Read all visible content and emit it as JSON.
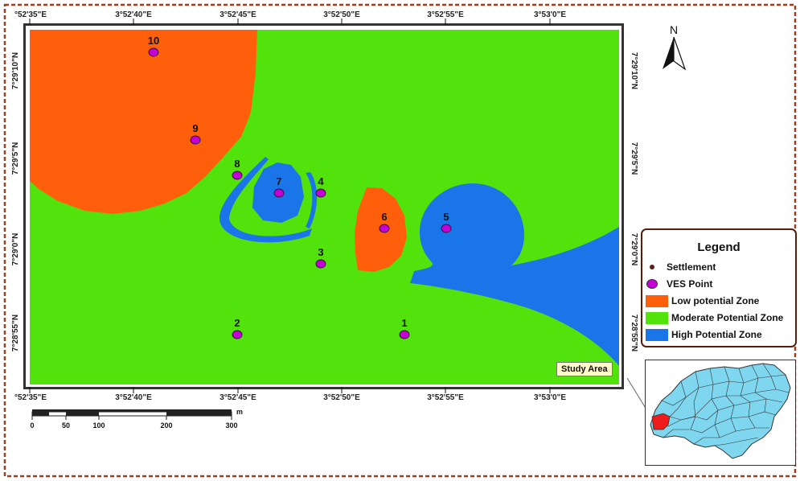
{
  "map": {
    "top_lon_labels": [
      "°52'35\"E",
      "3°52'40\"E",
      "3°52'45\"E",
      "3°52'50\"E",
      "3°52'55\"E",
      "3°53'0\"E"
    ],
    "bottom_lon_labels": [
      "°52'35\"E",
      "3°52'40\"E",
      "3°52'45\"E",
      "3°52'50\"E",
      "3°52'55\"E",
      "3°53'0\"E"
    ],
    "left_lat_labels": [
      "7°29'10\"N",
      "7°29'5\"N",
      "7°29'0\"N",
      "7°28'55\"N"
    ],
    "right_lat_labels": [
      "7°29'10\"N",
      "7°29'5\"N",
      "7°29'0\"N",
      "7°28'55\"N"
    ],
    "north_label": "N",
    "ves_points": [
      "1",
      "2",
      "3",
      "4",
      "5",
      "6",
      "7",
      "8",
      "9",
      "10"
    ]
  },
  "scale_bar": {
    "ticks": [
      "0",
      "50",
      "100",
      "200",
      "300"
    ],
    "unit": "m"
  },
  "legend": {
    "title": "Legend",
    "items": [
      {
        "label": "Settlement",
        "color": "#5a1f14"
      },
      {
        "label": "VES Point",
        "color": "#c400d6"
      },
      {
        "label": "Low potential Zone",
        "color": "#ff5f0a"
      },
      {
        "label": "Moderate Potential Zone",
        "color": "#52e30c"
      },
      {
        "label": "High Potential Zone",
        "color": "#1a76e8"
      }
    ]
  },
  "inset": {
    "label": "Study Area",
    "country_color": "#7fd6ef",
    "study_color": "#ee1c1c"
  }
}
